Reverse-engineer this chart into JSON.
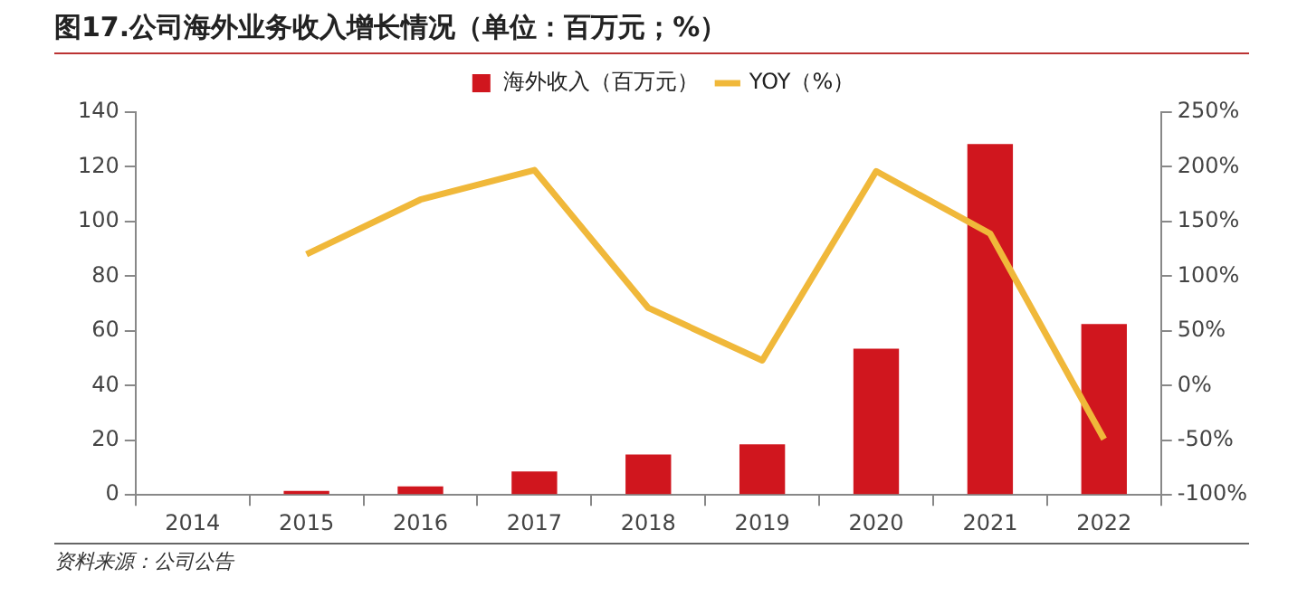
{
  "chart_data": {
    "type": "bar",
    "title": "图17.公司海外业务收入增长情况（单位：百万元；%）",
    "categories": [
      "2014",
      "2015",
      "2016",
      "2017",
      "2018",
      "2019",
      "2020",
      "2021",
      "2022"
    ],
    "series": [
      {
        "name": "海外收入（百万元）",
        "color": "#d0161e",
        "values": [
          0.3,
          1.5,
          3.1,
          8.6,
          14.8,
          18.5,
          53.5,
          128.3,
          62.5
        ]
      },
      {
        "name": "YOY（%）",
        "type": "line",
        "axis": "y2",
        "color": "#f0b83a",
        "values": [
          null,
          120,
          170,
          197,
          71,
          23,
          196,
          139,
          -49
        ]
      }
    ],
    "ylim": [
      0,
      140
    ],
    "yticks": [
      0,
      20,
      40,
      60,
      80,
      100,
      120,
      140
    ],
    "y2lim": [
      -100,
      250
    ],
    "y2ticks": [
      {
        "value": -100,
        "label": "-100%"
      },
      {
        "value": -50,
        "label": "-50%"
      },
      {
        "value": 0,
        "label": "0%"
      },
      {
        "value": 50,
        "label": "50%"
      },
      {
        "value": 100,
        "label": "100%"
      },
      {
        "value": 150,
        "label": "150%"
      },
      {
        "value": 200,
        "label": "200%"
      },
      {
        "value": 250,
        "label": "250%"
      }
    ],
    "grid": false,
    "legend": "top",
    "marker": "none",
    "line_style": "solid",
    "annotations": [
      "资料来源：公司公告"
    ]
  }
}
